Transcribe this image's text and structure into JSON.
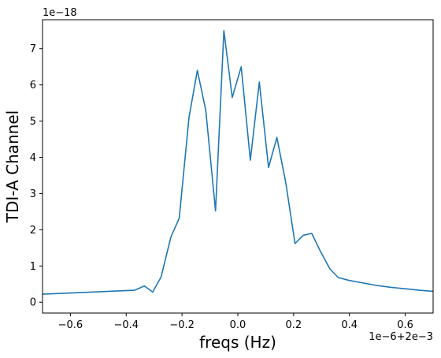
{
  "chart_data": {
    "type": "line",
    "title": "",
    "xlabel": "freqs (Hz)",
    "ylabel": "TDI-A Channel",
    "x_offset_text": "1e−6+2e−3",
    "y_offset_text": "1e−18",
    "xlim": [
      -0.7,
      0.7
    ],
    "ylim": [
      -0.3,
      7.8
    ],
    "grid": false,
    "legend": "none",
    "color": "#1f77b4",
    "x_ticks": [
      -0.6,
      -0.4,
      -0.2,
      0.0,
      0.2,
      0.4,
      0.6
    ],
    "x_tick_labels": [
      "−0.6",
      "−0.4",
      "−0.2",
      "0.0",
      "0.2",
      "0.4",
      "0.6"
    ],
    "y_ticks": [
      0,
      1,
      2,
      3,
      4,
      5,
      6,
      7
    ],
    "y_tick_labels": [
      "0",
      "1",
      "2",
      "3",
      "4",
      "5",
      "6",
      "7"
    ],
    "series": [
      {
        "x": [
          -0.7,
          -0.37,
          -0.335,
          -0.305,
          -0.275,
          -0.24,
          -0.21,
          -0.175,
          -0.145,
          -0.115,
          -0.08,
          -0.05,
          -0.02,
          0.012,
          0.045,
          0.077,
          0.11,
          0.14,
          0.172,
          0.205,
          0.235,
          0.265,
          0.295,
          0.33,
          0.36,
          0.4,
          0.45,
          0.5,
          0.55,
          0.6,
          0.65,
          0.7
        ],
        "values": [
          0.22,
          0.33,
          0.45,
          0.28,
          0.7,
          1.8,
          2.32,
          5.1,
          6.4,
          5.3,
          2.52,
          7.5,
          5.65,
          6.5,
          3.92,
          6.08,
          3.72,
          4.55,
          3.3,
          1.62,
          1.85,
          1.9,
          1.42,
          0.92,
          0.68,
          0.6,
          0.53,
          0.46,
          0.41,
          0.37,
          0.33,
          0.3
        ]
      }
    ]
  }
}
